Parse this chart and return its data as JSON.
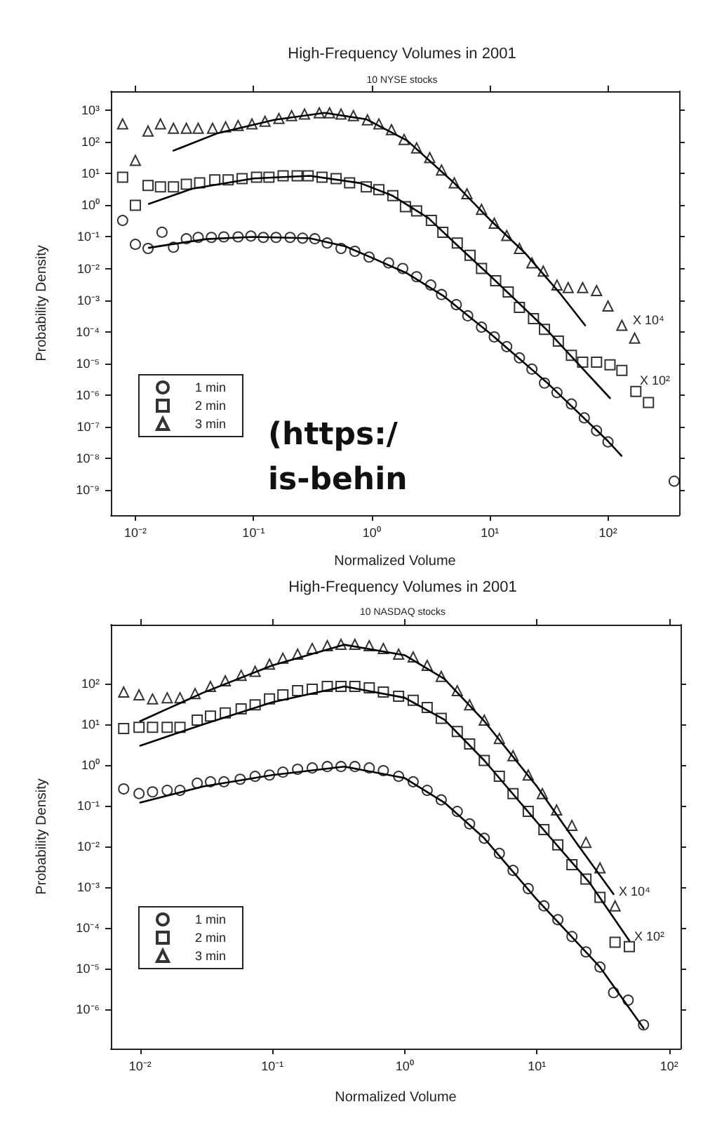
{
  "chart_data": [
    {
      "type": "scatter",
      "title": "High-Frequency Volumes in 2001",
      "subtitle": "10 NYSE stocks",
      "xlabel": "Normalized Volume",
      "ylabel": "Probability Density",
      "log": "xy",
      "legend": "bottom left",
      "xlim": [
        0.0062,
        400
      ],
      "ylim": [
        1.6e-10,
        4000
      ],
      "xticks": [
        {
          "value": 0.01,
          "label": "10⁻²"
        },
        {
          "value": 0.1,
          "label": "10⁻¹"
        },
        {
          "value": 1,
          "label": "10⁰"
        },
        {
          "value": 10,
          "label": "10¹"
        },
        {
          "value": 100,
          "label": "10²"
        }
      ],
      "yticks": [
        {
          "value": 1e-09,
          "label": "10⁻⁹"
        },
        {
          "value": 1e-08,
          "label": "10⁻⁸"
        },
        {
          "value": 1e-07,
          "label": "10⁻⁷"
        },
        {
          "value": 1e-06,
          "label": "10⁻⁶"
        },
        {
          "value": 1e-05,
          "label": "10⁻⁵"
        },
        {
          "value": 0.0001,
          "label": "10⁻⁴"
        },
        {
          "value": 0.001,
          "label": "10⁻³"
        },
        {
          "value": 0.01,
          "label": "10⁻²"
        },
        {
          "value": 0.1,
          "label": "10⁻¹"
        },
        {
          "value": 1,
          "label": "10⁰"
        },
        {
          "value": 10,
          "label": "10¹"
        },
        {
          "value": 100,
          "label": "10²"
        },
        {
          "value": 1000,
          "label": "10³"
        }
      ],
      "annotations": [
        "X 10⁴",
        "X 10²",
        "(https:/",
        "is-behin"
      ],
      "series": [
        {
          "name": "1 min",
          "marker": "circle",
          "color": "#000000",
          "x": [
            0.0078,
            0.01,
            0.0128,
            0.0168,
            0.021,
            0.027,
            0.034,
            0.044,
            0.056,
            0.074,
            0.095,
            0.121,
            0.155,
            0.204,
            0.26,
            0.33,
            0.42,
            0.55,
            0.72,
            0.95,
            1.39,
            1.83,
            2.4,
            3.16,
            3.9,
            5.2,
            6.5,
            8.5,
            10.9,
            13.9,
            17.8,
            22.7,
            29,
            37,
            49,
            63,
            80,
            100,
            363
          ],
          "values": [
            0.33,
            0.058,
            0.043,
            0.14,
            0.047,
            0.087,
            0.096,
            0.096,
            0.1,
            0.1,
            0.106,
            0.096,
            0.096,
            0.096,
            0.091,
            0.087,
            0.064,
            0.043,
            0.035,
            0.023,
            0.015,
            0.01,
            0.0055,
            0.003,
            0.0015,
            0.00072,
            0.00032,
            0.00014,
            6.9e-05,
            3.4e-05,
            1.5e-05,
            6.6e-06,
            2.4e-06,
            1.2e-06,
            5.2e-07,
            1.9e-07,
            7.5e-08,
            3.3e-08,
            1.9e-09
          ]
        },
        {
          "name": "2 min",
          "marker": "square",
          "color": "#000000",
          "x": [
            0.0078,
            0.01,
            0.0128,
            0.0163,
            0.021,
            0.027,
            0.035,
            0.047,
            0.061,
            0.08,
            0.106,
            0.135,
            0.178,
            0.234,
            0.29,
            0.38,
            0.5,
            0.65,
            0.9,
            1.15,
            1.51,
            1.93,
            2.4,
            3.2,
            4.0,
            5.3,
            6.8,
            8.5,
            11.2,
            14.3,
            17.8,
            23.4,
            29,
            38,
            49,
            61,
            80,
            104,
            131,
            172,
            220
          ],
          "values": [
            7.7,
            1.0,
            4.2,
            3.8,
            3.8,
            4.6,
            5.1,
            6.3,
            6.3,
            6.9,
            7.7,
            7.7,
            8.5,
            8.5,
            8.5,
            7.7,
            6.9,
            5.1,
            3.8,
            3.1,
            2.0,
            0.9,
            0.66,
            0.33,
            0.14,
            0.064,
            0.026,
            0.01,
            0.0041,
            0.0018,
            0.00059,
            0.00026,
            0.00012,
            5.1e-05,
            1.8e-05,
            1.1e-05,
            1.1e-05,
            9.1e-06,
            6e-06,
            1.3e-06,
            5.8e-07
          ]
        },
        {
          "name": "3 min",
          "marker": "triangle",
          "color": "#000000",
          "x": [
            0.0078,
            0.01,
            0.0128,
            0.0163,
            0.021,
            0.027,
            0.034,
            0.045,
            0.058,
            0.074,
            0.097,
            0.125,
            0.164,
            0.21,
            0.27,
            0.36,
            0.44,
            0.55,
            0.7,
            0.92,
            1.15,
            1.47,
            1.88,
            2.4,
            3.1,
            3.9,
            5.0,
            6.4,
            8.5,
            10.9,
            13.9,
            17.8,
            22.7,
            28.3,
            37,
            46,
            61,
            80,
            100,
            131,
            168
          ],
          "values": [
            370,
            26,
            220,
            370,
            270,
            270,
            270,
            270,
            300,
            330,
            370,
            450,
            550,
            680,
            760,
            830,
            830,
            760,
            680,
            500,
            370,
            245,
            120,
            65,
            32,
            13,
            5.1,
            2.3,
            0.74,
            0.27,
            0.11,
            0.043,
            0.015,
            0.0083,
            0.003,
            0.0025,
            0.0025,
            0.002,
            0.00065,
            0.00016,
            6.3e-05
          ]
        },
        {
          "type": "line",
          "color": "#000000",
          "x": [
            0.013,
            0.02,
            0.04,
            0.1,
            0.3,
            0.6,
            1,
            2,
            4,
            10,
            30,
            100,
            130
          ],
          "values": [
            0.045,
            0.058,
            0.085,
            0.1,
            0.09,
            0.05,
            0.022,
            0.007,
            0.0014,
            9e-05,
            2.6e-06,
            3.5e-08,
            1.2e-08
          ]
        },
        {
          "type": "line",
          "color": "#000000",
          "x": [
            0.013,
            0.03,
            0.1,
            0.3,
            0.8,
            1.5,
            3,
            6,
            10,
            30,
            104
          ],
          "values": [
            1.1,
            3.3,
            7,
            8.5,
            5,
            2,
            0.4,
            0.035,
            0.006,
            0.00012,
            8e-07
          ]
        },
        {
          "type": "line",
          "color": "#000000",
          "x": [
            0.021,
            0.05,
            0.15,
            0.4,
            0.9,
            2,
            5,
            10,
            20,
            40,
            64
          ],
          "values": [
            53,
            190,
            500,
            830,
            520,
            110,
            5,
            0.35,
            0.03,
            0.0015,
            0.00016
          ]
        }
      ]
    },
    {
      "type": "scatter",
      "title": "High-Frequency Volumes in 2001",
      "subtitle": "10 NASDAQ stocks",
      "xlabel": "Normalized Volume",
      "ylabel": "Probability Density",
      "log": "xy",
      "legend": "bottom left",
      "xlim": [
        0.006,
        122
      ],
      "ylim": [
        1.1e-07,
        2800
      ],
      "xticks": [
        {
          "value": 0.01,
          "label": "10⁻²"
        },
        {
          "value": 0.1,
          "label": "10⁻¹"
        },
        {
          "value": 1,
          "label": "10⁰"
        },
        {
          "value": 10,
          "label": "10¹"
        },
        {
          "value": 100,
          "label": "10²"
        }
      ],
      "yticks": [
        {
          "value": 1e-06,
          "label": "10⁻⁶"
        },
        {
          "value": 1e-05,
          "label": "10⁻⁵"
        },
        {
          "value": 0.0001,
          "label": "10⁻⁴"
        },
        {
          "value": 0.001,
          "label": "10⁻³"
        },
        {
          "value": 0.01,
          "label": "10⁻²"
        },
        {
          "value": 0.1,
          "label": "10⁻¹"
        },
        {
          "value": 1,
          "label": "10⁰"
        },
        {
          "value": 10,
          "label": "10¹"
        },
        {
          "value": 100,
          "label": "10²"
        }
      ],
      "annotations": [
        "X 10⁴",
        "X 10²"
      ],
      "series": [
        {
          "name": "1 min",
          "marker": "circle",
          "color": "#000000",
          "x": [
            0.0075,
            0.0098,
            0.0124,
            0.016,
            0.02,
            0.027,
            0.034,
            0.043,
            0.057,
            0.074,
            0.095,
            0.12,
            0.155,
            0.2,
            0.26,
            0.33,
            0.42,
            0.54,
            0.69,
            0.9,
            1.16,
            1.48,
            1.89,
            2.5,
            3.1,
            4.0,
            5.2,
            6.6,
            8.6,
            11.3,
            14.4,
            18.4,
            23.5,
            30,
            38,
            49,
            64
          ],
          "values": [
            0.26,
            0.2,
            0.22,
            0.24,
            0.24,
            0.36,
            0.39,
            0.39,
            0.45,
            0.53,
            0.57,
            0.67,
            0.79,
            0.85,
            0.92,
            0.92,
            0.92,
            0.85,
            0.73,
            0.53,
            0.39,
            0.24,
            0.14,
            0.073,
            0.036,
            0.016,
            0.0068,
            0.0026,
            0.00093,
            0.00035,
            0.00016,
            6.2e-05,
            2.6e-05,
            1.1e-05,
            2.6e-06,
            1.7e-06,
            4.2e-07
          ]
        },
        {
          "name": "2 min",
          "marker": "square",
          "color": "#000000",
          "x": [
            0.0075,
            0.0098,
            0.0124,
            0.016,
            0.02,
            0.027,
            0.034,
            0.044,
            0.058,
            0.074,
            0.095,
            0.12,
            0.155,
            0.2,
            0.26,
            0.33,
            0.42,
            0.54,
            0.69,
            0.9,
            1.16,
            1.48,
            1.89,
            2.5,
            3.1,
            4.0,
            5.2,
            6.6,
            8.6,
            11.3,
            14.4,
            18.4,
            23.5,
            30,
            39,
            50
          ],
          "values": [
            7.9,
            8.5,
            8.5,
            8.5,
            8.5,
            12.7,
            16,
            19,
            24,
            30,
            42,
            53,
            67,
            73,
            85,
            85,
            85,
            79,
            62,
            49,
            39,
            26,
            14,
            6.7,
            3.3,
            1.3,
            0.53,
            0.2,
            0.073,
            0.026,
            0.011,
            0.0036,
            0.0016,
            0.00057,
            4.5e-05,
            3.5e-05
          ]
        },
        {
          "name": "3 min",
          "marker": "triangle",
          "color": "#000000",
          "x": [
            0.0075,
            0.0098,
            0.0124,
            0.016,
            0.02,
            0.026,
            0.034,
            0.044,
            0.058,
            0.074,
            0.095,
            0.12,
            0.155,
            0.2,
            0.26,
            0.33,
            0.42,
            0.54,
            0.69,
            0.9,
            1.16,
            1.48,
            1.89,
            2.5,
            3.1,
            4.0,
            5.2,
            6.6,
            8.6,
            11.0,
            14.1,
            18.4,
            23.5,
            30,
            39
          ],
          "values": [
            62,
            53,
            42,
            45,
            45,
            57,
            85,
            117,
            160,
            200,
            300,
            420,
            530,
            730,
            850,
            920,
            920,
            850,
            730,
            530,
            450,
            280,
            150,
            67,
            30,
            12.7,
            4.5,
            1.7,
            0.57,
            0.2,
            0.079,
            0.033,
            0.0127,
            0.003,
            0.00035
          ]
        },
        {
          "type": "line",
          "color": "#000000",
          "x": [
            0.01,
            0.03,
            0.1,
            0.35,
            1,
            2,
            4,
            10,
            30,
            64
          ],
          "values": [
            0.12,
            0.3,
            0.57,
            0.92,
            0.48,
            0.12,
            0.016,
            0.0005,
            1.1e-05,
            3.5e-07
          ]
        },
        {
          "type": "line",
          "color": "#000000",
          "x": [
            0.01,
            0.03,
            0.1,
            0.35,
            1,
            2,
            4,
            10,
            25,
            50
          ],
          "values": [
            3,
            10,
            35,
            85,
            45,
            13,
            1.3,
            0.04,
            0.0013,
            4.9e-05
          ]
        },
        {
          "type": "line",
          "color": "#000000",
          "x": [
            0.01,
            0.03,
            0.1,
            0.35,
            1,
            2,
            4,
            10,
            20,
            38
          ],
          "values": [
            12,
            60,
            280,
            900,
            500,
            130,
            12,
            0.3,
            0.012,
            0.00068
          ]
        }
      ]
    }
  ]
}
